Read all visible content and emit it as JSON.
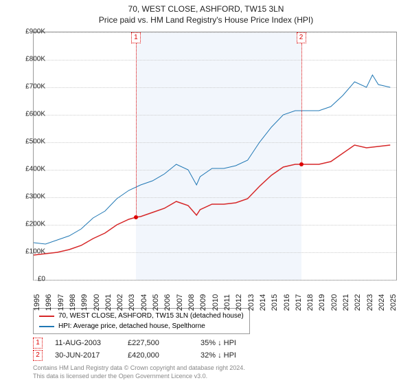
{
  "title": "70, WEST CLOSE, ASHFORD, TW15 3LN",
  "subtitle": "Price paid vs. HM Land Registry's House Price Index (HPI)",
  "chart": {
    "type": "line",
    "background_color": "#ffffff",
    "shade_color": "#f2f6fc",
    "grid_color": "#cccccc",
    "border_color": "#999999",
    "xlim": [
      1995,
      2025.5
    ],
    "ylim": [
      0,
      900000
    ],
    "ytick_step": 100000,
    "yticks": [
      "£0",
      "£100K",
      "£200K",
      "£300K",
      "£400K",
      "£500K",
      "£600K",
      "£700K",
      "£800K",
      "£900K"
    ],
    "xticks": [
      1995,
      1996,
      1997,
      1998,
      1999,
      2000,
      2001,
      2002,
      2003,
      2004,
      2005,
      2006,
      2007,
      2008,
      2009,
      2010,
      2011,
      2012,
      2013,
      2014,
      2015,
      2016,
      2017,
      2018,
      2019,
      2020,
      2021,
      2022,
      2023,
      2024,
      2025
    ],
    "shade_start": 2003.6,
    "shade_end": 2017.5,
    "series": [
      {
        "name": "70, WEST CLOSE, ASHFORD, TW15 3LN (detached house)",
        "color": "#d62728",
        "line_width": 1.5,
        "data": [
          [
            1995,
            90000
          ],
          [
            1996,
            95000
          ],
          [
            1997,
            100000
          ],
          [
            1998,
            110000
          ],
          [
            1999,
            125000
          ],
          [
            2000,
            150000
          ],
          [
            2001,
            170000
          ],
          [
            2002,
            200000
          ],
          [
            2003,
            220000
          ],
          [
            2003.6,
            227500
          ],
          [
            2004,
            230000
          ],
          [
            2005,
            245000
          ],
          [
            2006,
            260000
          ],
          [
            2007,
            285000
          ],
          [
            2008,
            270000
          ],
          [
            2008.7,
            235000
          ],
          [
            2009,
            255000
          ],
          [
            2010,
            275000
          ],
          [
            2011,
            275000
          ],
          [
            2012,
            280000
          ],
          [
            2013,
            295000
          ],
          [
            2014,
            340000
          ],
          [
            2015,
            380000
          ],
          [
            2016,
            410000
          ],
          [
            2017,
            420000
          ],
          [
            2017.5,
            420000
          ],
          [
            2018,
            420000
          ],
          [
            2019,
            420000
          ],
          [
            2020,
            430000
          ],
          [
            2021,
            460000
          ],
          [
            2022,
            490000
          ],
          [
            2023,
            480000
          ],
          [
            2024,
            485000
          ],
          [
            2025,
            490000
          ]
        ]
      },
      {
        "name": "HPI: Average price, detached house, Spelthorne",
        "color": "#1f77b4",
        "line_width": 1,
        "data": [
          [
            1995,
            135000
          ],
          [
            1996,
            130000
          ],
          [
            1997,
            145000
          ],
          [
            1998,
            160000
          ],
          [
            1999,
            185000
          ],
          [
            2000,
            225000
          ],
          [
            2001,
            250000
          ],
          [
            2002,
            295000
          ],
          [
            2003,
            325000
          ],
          [
            2004,
            345000
          ],
          [
            2005,
            360000
          ],
          [
            2006,
            385000
          ],
          [
            2007,
            420000
          ],
          [
            2008,
            400000
          ],
          [
            2008.7,
            345000
          ],
          [
            2009,
            375000
          ],
          [
            2010,
            405000
          ],
          [
            2011,
            405000
          ],
          [
            2012,
            415000
          ],
          [
            2013,
            435000
          ],
          [
            2014,
            500000
          ],
          [
            2015,
            555000
          ],
          [
            2016,
            600000
          ],
          [
            2017,
            615000
          ],
          [
            2018,
            615000
          ],
          [
            2019,
            615000
          ],
          [
            2020,
            630000
          ],
          [
            2021,
            670000
          ],
          [
            2022,
            720000
          ],
          [
            2023,
            700000
          ],
          [
            2023.5,
            745000
          ],
          [
            2024,
            710000
          ],
          [
            2025,
            700000
          ]
        ]
      }
    ],
    "markers": [
      {
        "n": "1",
        "x": 2003.6,
        "y": 227500
      },
      {
        "n": "2",
        "x": 2017.5,
        "y": 420000
      }
    ]
  },
  "legend": {
    "items": [
      {
        "color": "#d62728",
        "label": "70, WEST CLOSE, ASHFORD, TW15 3LN (detached house)"
      },
      {
        "color": "#1f77b4",
        "label": "HPI: Average price, detached house, Spelthorne"
      }
    ]
  },
  "datapoints": [
    {
      "n": "1",
      "date": "11-AUG-2003",
      "price": "£227,500",
      "delta": "35% ↓ HPI"
    },
    {
      "n": "2",
      "date": "30-JUN-2017",
      "price": "£420,000",
      "delta": "32% ↓ HPI"
    }
  ],
  "footer": {
    "line1": "Contains HM Land Registry data © Crown copyright and database right 2024.",
    "line2": "This data is licensed under the Open Government Licence v3.0."
  }
}
